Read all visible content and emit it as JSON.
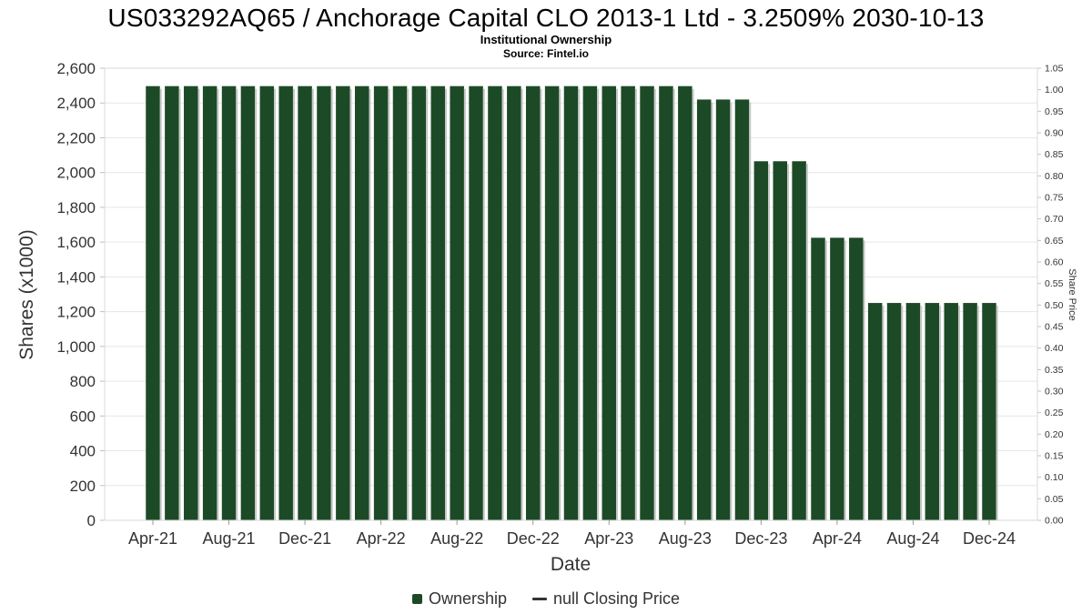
{
  "header": {
    "title": "US033292AQ65 / Anchorage Capital CLO 2013-1 Ltd - 3.2509% 2030-10-13",
    "subtitle": "Institutional Ownership",
    "source": "Source: Fintel.io"
  },
  "axes": {
    "left_title": "Shares (x1000)",
    "right_title": "Share Price",
    "x_title": "Date"
  },
  "legend": {
    "ownership": "Ownership",
    "closing_price": "null Closing Price"
  },
  "colors": {
    "bar": "#1d4a26",
    "bar_shadow": "#c8c8c8",
    "grid": "#e6e6e6",
    "axis_text": "#333333",
    "tick_mark": "#c0c0c0",
    "plot_border": "#d8d8d8",
    "line_marker": "#333333"
  },
  "chart_data": {
    "type": "bar",
    "title": "US033292AQ65 / Anchorage Capital CLO 2013-1 Ltd - 3.2509% 2030-10-13",
    "subtitle": "Institutional Ownership",
    "source": "Source: Fintel.io",
    "xlabel": "Date",
    "ylabel_left": "Shares (x1000)",
    "ylabel_right": "Share Price",
    "ylim_left": [
      0,
      2600
    ],
    "ytick_step_left": 200,
    "ylim_right": [
      0,
      1.05
    ],
    "ytick_step_right": 0.05,
    "grid": true,
    "legend_position": "bottom",
    "x_tick_every": 4,
    "categories": [
      "Apr-21",
      "May-21",
      "Jun-21",
      "Jul-21",
      "Aug-21",
      "Sep-21",
      "Oct-21",
      "Nov-21",
      "Dec-21",
      "Jan-22",
      "Feb-22",
      "Mar-22",
      "Apr-22",
      "May-22",
      "Jun-22",
      "Jul-22",
      "Aug-22",
      "Sep-22",
      "Oct-22",
      "Nov-22",
      "Dec-22",
      "Jan-23",
      "Feb-23",
      "Mar-23",
      "Apr-23",
      "May-23",
      "Jun-23",
      "Jul-23",
      "Aug-23",
      "Sep-23",
      "Oct-23",
      "Nov-23",
      "Dec-23",
      "Jan-24",
      "Feb-24",
      "Mar-24",
      "Apr-24",
      "May-24",
      "Jun-24",
      "Jul-24",
      "Aug-24",
      "Sep-24",
      "Oct-24",
      "Nov-24",
      "Dec-24"
    ],
    "series": [
      {
        "name": "Ownership",
        "type": "bar",
        "values": [
          2497,
          2497,
          2497,
          2497,
          2497,
          2497,
          2497,
          2497,
          2497,
          2497,
          2497,
          2497,
          2497,
          2497,
          2497,
          2497,
          2497,
          2497,
          2497,
          2497,
          2497,
          2497,
          2497,
          2497,
          2497,
          2497,
          2497,
          2497,
          2497,
          2420,
          2420,
          2420,
          2065,
          2065,
          2065,
          1625,
          1625,
          1625,
          1250,
          1250,
          1250,
          1250,
          1250,
          1250,
          1250
        ]
      },
      {
        "name": "null Closing Price",
        "type": "line",
        "values": []
      }
    ]
  }
}
